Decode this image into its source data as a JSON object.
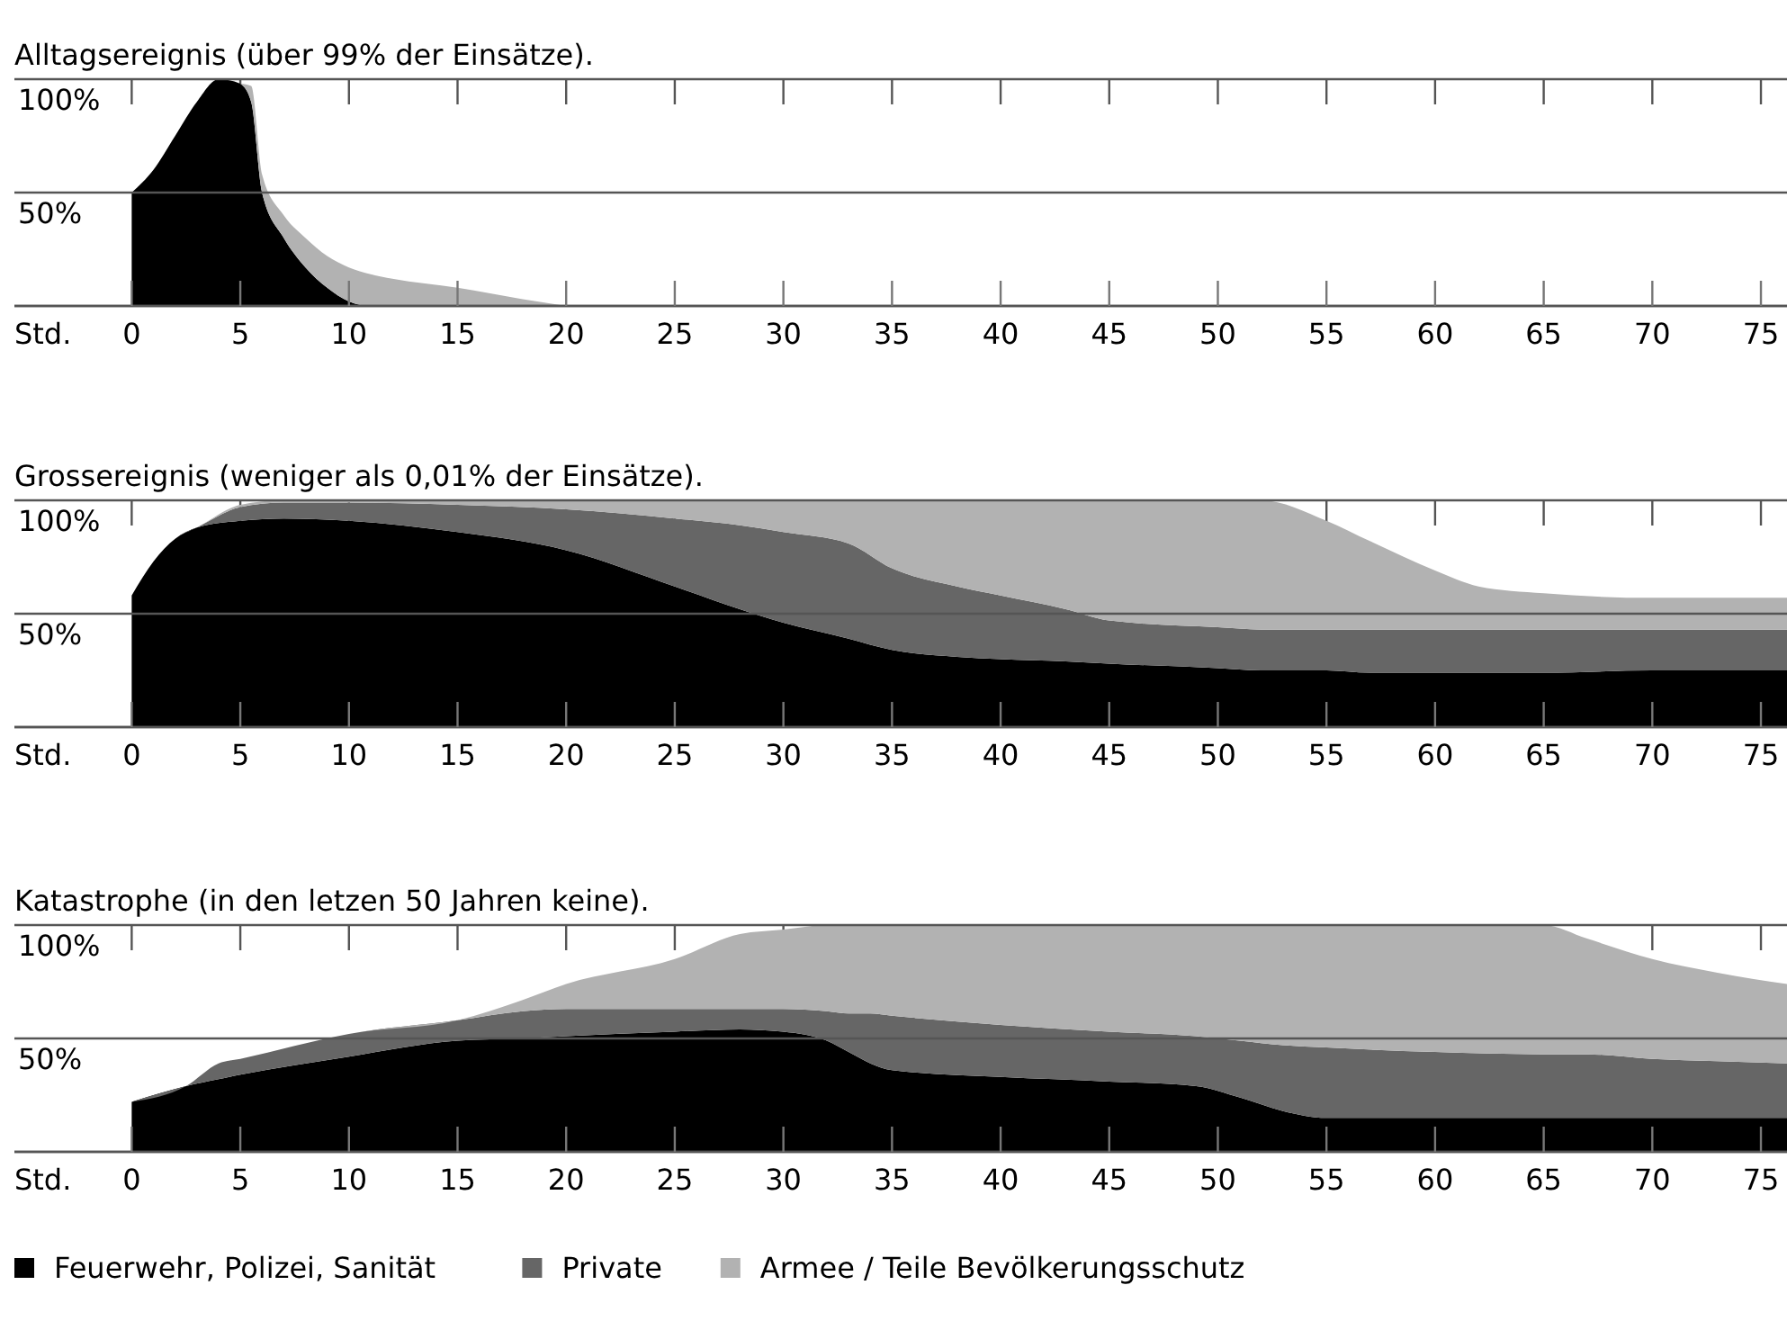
{
  "chart_data": [
    {
      "type": "area",
      "stacked": true,
      "title": "Alltagsereignis (über 99% der Einsätze).",
      "xlabel": "Std.",
      "xlim": [
        -5.4,
        76.2
      ],
      "ylim": [
        0,
        100
      ],
      "xticks": [
        0,
        5,
        10,
        15,
        20,
        25,
        30,
        35,
        40,
        45,
        50,
        55,
        60,
        65,
        70,
        75
      ],
      "yticks": [
        {
          "value": 0,
          "label": null
        },
        {
          "value": 50,
          "label": "50%"
        },
        {
          "value": 100,
          "label": "100%"
        }
      ],
      "grid": "y",
      "legend": false,
      "x": [
        0,
        1,
        2,
        3,
        4,
        5,
        5.5,
        6,
        7,
        8,
        9,
        10,
        11,
        12,
        15,
        18,
        20
      ],
      "series": [
        {
          "color": "#000000",
          "values": [
            50,
            60,
            75,
            90,
            100,
            98,
            90,
            50,
            30,
            17,
            8,
            2,
            0,
            0,
            0,
            0,
            0
          ]
        },
        {
          "color": "#b2b2b2",
          "values": [
            null,
            null,
            null,
            null,
            null,
            0,
            7,
            8,
            10,
            13,
            14,
            15,
            14,
            12,
            8,
            3,
            0
          ]
        }
      ]
    },
    {
      "type": "area",
      "stacked": true,
      "title": "Grossereignis (weniger als 0,01% der Einsätze).",
      "xlabel": "Std.",
      "xlim": [
        -5.4,
        76.2
      ],
      "ylim": [
        0,
        100
      ],
      "xticks": [
        0,
        5,
        10,
        15,
        20,
        25,
        30,
        35,
        40,
        45,
        50,
        55,
        60,
        65,
        70,
        75
      ],
      "yticks": [
        {
          "value": 0,
          "label": null
        },
        {
          "value": 50,
          "label": "50%"
        },
        {
          "value": 100,
          "label": "100%"
        }
      ],
      "grid": "y",
      "legend": false,
      "x": [
        0,
        1,
        2,
        3,
        5,
        7,
        10,
        15,
        20,
        25,
        28,
        30,
        33,
        35,
        38,
        40,
        43,
        45,
        50,
        52,
        55,
        57,
        60,
        62,
        65,
        70,
        76.2
      ],
      "series": [
        {
          "color": "#000000",
          "values": [
            58,
            73,
            83,
            88,
            91,
            92,
            91,
            86,
            78,
            62,
            52,
            46,
            39,
            34,
            31,
            30,
            29,
            28,
            26,
            25,
            25,
            24,
            24,
            24,
            24,
            25,
            25
          ]
        },
        {
          "color": "#666666",
          "values": [
            0,
            0,
            0,
            0,
            6,
            7,
            8,
            12,
            18,
            30,
            37,
            40,
            42,
            36,
            31,
            28,
            23,
            19,
            18,
            18,
            18,
            19,
            19,
            19,
            19,
            18,
            18
          ]
        },
        {
          "color": "#b2b2b2",
          "values": [
            0,
            0,
            0,
            0,
            1,
            1,
            1,
            2,
            4,
            8,
            11,
            14,
            19,
            30,
            38,
            42,
            48,
            53,
            56,
            57,
            48,
            39,
            26,
            19,
            16,
            14,
            14
          ]
        }
      ]
    },
    {
      "type": "area",
      "stacked": true,
      "title": "Katastrophe (in den letzen 50 Jahren keine).",
      "xlabel": "Std.",
      "xlim": [
        -5.4,
        76.2
      ],
      "ylim": [
        0,
        100
      ],
      "xticks": [
        0,
        5,
        10,
        15,
        20,
        25,
        30,
        35,
        40,
        45,
        50,
        55,
        60,
        65,
        70,
        75
      ],
      "yticks": [
        {
          "value": 0,
          "label": null
        },
        {
          "value": 50,
          "label": "50%"
        },
        {
          "value": 100,
          "label": "100%"
        }
      ],
      "grid": "y",
      "legend": "bottom",
      "x": [
        0,
        2.5,
        4,
        5,
        10,
        15,
        18,
        20,
        25,
        28,
        30,
        32,
        33,
        34,
        35,
        40,
        45,
        49,
        51,
        53,
        55,
        60,
        65,
        67,
        70,
        73,
        76.2
      ],
      "series": [
        {
          "name": "Feuerwehr, Polizei, Sanität",
          "color": "#000000",
          "values": [
            22,
            29,
            32,
            34,
            42,
            49,
            50,
            51,
            53,
            54,
            53,
            49,
            44,
            39,
            36,
            33,
            31,
            29,
            24,
            18,
            15,
            15,
            15,
            15,
            15,
            15,
            15
          ]
        },
        {
          "name": "Private",
          "color": "#666666",
          "values": [
            0,
            0,
            7,
            7,
            10,
            9,
            12,
            12,
            10,
            9,
            10,
            13,
            17,
            22,
            24,
            23,
            22,
            22,
            25,
            29,
            31,
            29,
            28,
            28,
            26,
            25,
            24
          ]
        },
        {
          "name": "Armee / Teile Bevölkerungsschutz",
          "color": "#b2b2b2",
          "values": [
            0,
            0,
            0,
            0,
            0,
            0,
            5,
            11,
            22,
            33,
            35,
            38,
            39,
            39,
            40,
            44,
            47,
            49,
            51,
            53,
            54,
            56,
            57,
            51,
            44,
            39,
            35
          ]
        }
      ]
    }
  ]
}
